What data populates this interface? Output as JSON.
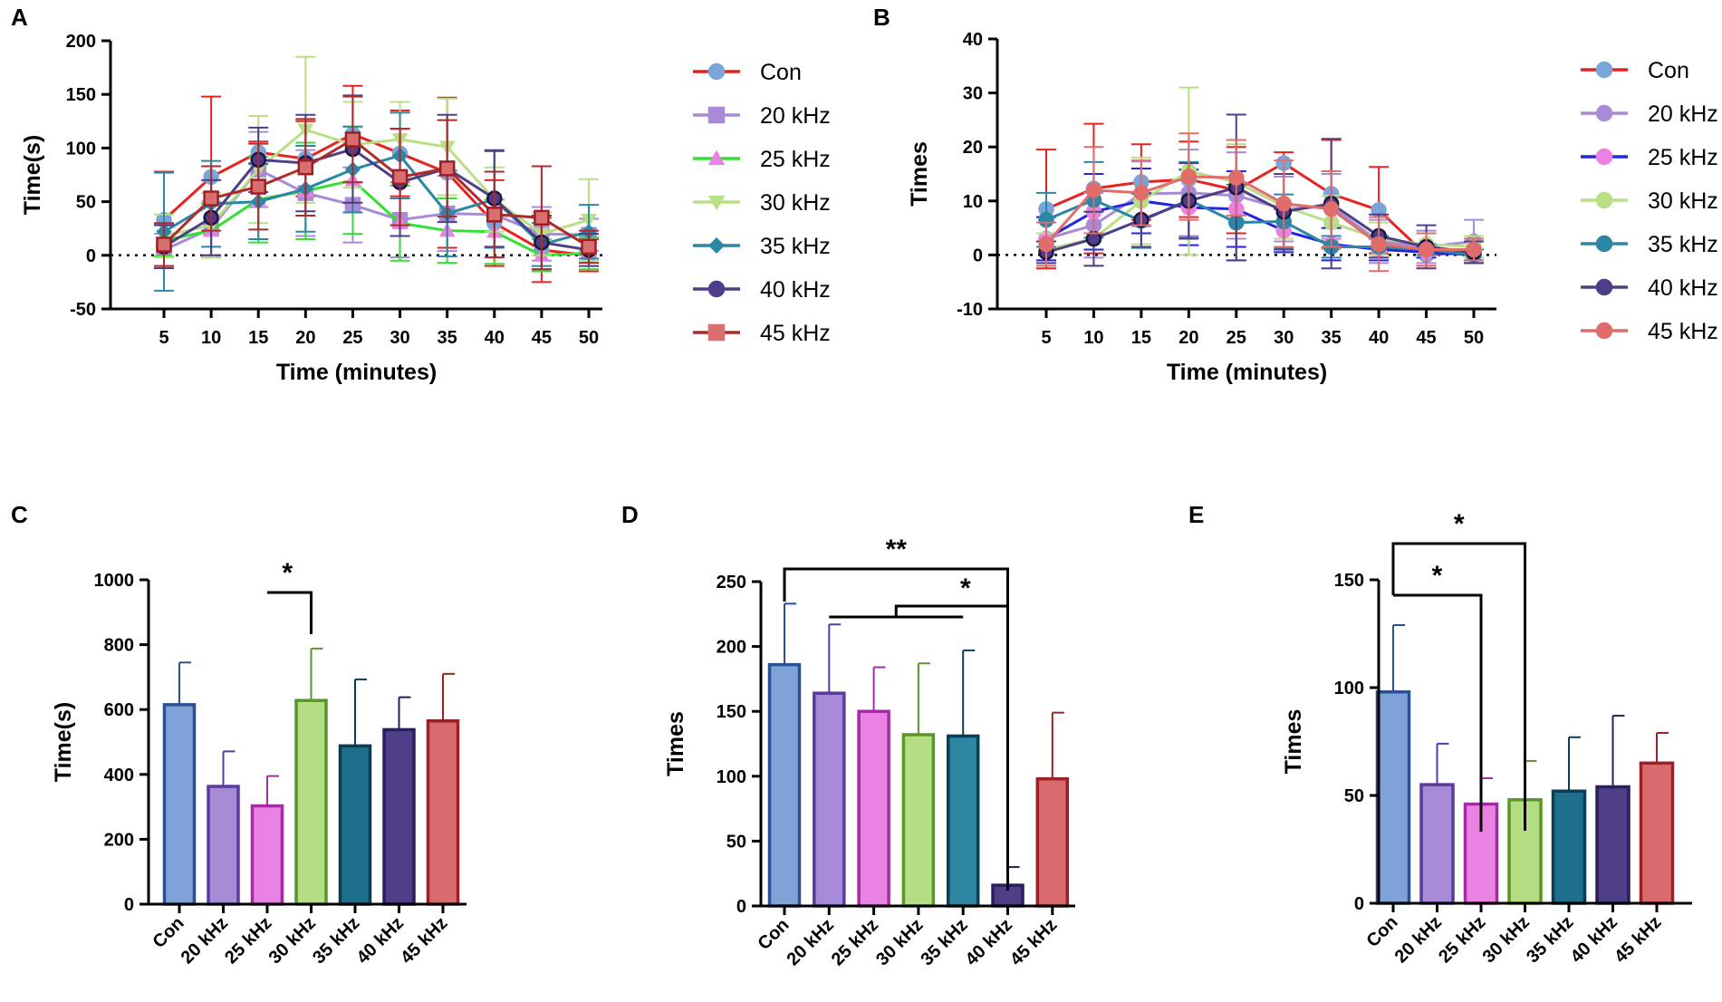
{
  "chart_data": [
    {
      "panel": "A",
      "type": "line",
      "xlabel": "Time (minutes)",
      "ylabel": "Time(s)",
      "x": [
        5,
        10,
        15,
        20,
        25,
        30,
        35,
        40,
        45,
        50
      ],
      "ylim": [
        -50,
        200
      ],
      "yticks": [
        -50,
        0,
        50,
        100,
        150,
        200
      ],
      "zero_line": true,
      "legend_position": "right",
      "series": [
        {
          "name": "Con",
          "color": "#e8231f",
          "marker": "circle",
          "marker_color": "#7aa5d8",
          "values": [
            33,
            73,
            96,
            90,
            113,
            95,
            77,
            30,
            5,
            0
          ],
          "errors": [
            45,
            75,
            10,
            35,
            45,
            40,
            70,
            40,
            30,
            15
          ]
        },
        {
          "name": "20 kHz",
          "color": "#a98ad6",
          "marker": "square",
          "marker_color": "#a98ad6",
          "values": [
            5,
            25,
            80,
            58,
            47,
            33,
            39,
            38,
            20,
            19
          ],
          "errors": [
            15,
            25,
            35,
            40,
            35,
            35,
            35,
            40,
            25,
            15
          ]
        },
        {
          "name": "25 kHz",
          "color": "#33e033",
          "marker": "triangle-up",
          "marker_color": "#ea82e4",
          "values": [
            14,
            23,
            52,
            60,
            70,
            30,
            23,
            22,
            0,
            2
          ],
          "errors": [
            15,
            25,
            40,
            45,
            50,
            35,
            30,
            30,
            15,
            15
          ]
        },
        {
          "name": "30 kHz",
          "color": "#b8de86",
          "marker": "triangle-down",
          "marker_color": "#b8de86",
          "values": [
            18,
            28,
            80,
            117,
            103,
            108,
            101,
            52,
            20,
            33
          ],
          "errors": [
            20,
            30,
            50,
            68,
            40,
            35,
            45,
            30,
            20,
            38
          ]
        },
        {
          "name": "35 kHz",
          "color": "#2c86a4",
          "marker": "diamond",
          "marker_color": "#2c86a4",
          "values": [
            22,
            48,
            50,
            62,
            80,
            93,
            39,
            52,
            10,
            22
          ],
          "errors": [
            55,
            40,
            35,
            40,
            40,
            40,
            40,
            45,
            20,
            25
          ]
        },
        {
          "name": "40 kHz",
          "color": "#4e3d87",
          "marker": "circle",
          "marker_color": "#4e3d87",
          "values": [
            8,
            35,
            89,
            86,
            99,
            68,
            81,
            53,
            12,
            5
          ],
          "errors": [
            20,
            35,
            30,
            45,
            50,
            50,
            50,
            45,
            25,
            15
          ]
        },
        {
          "name": "45 kHz",
          "color": "#b02a2a",
          "marker": "square",
          "marker_color": "#d96e6e",
          "values": [
            10,
            53,
            64,
            82,
            108,
            73,
            81,
            38,
            35,
            8
          ],
          "errors": [
            20,
            30,
            40,
            45,
            40,
            45,
            45,
            40,
            48,
            15
          ]
        }
      ]
    },
    {
      "panel": "B",
      "type": "line",
      "xlabel": "Time (minutes)",
      "ylabel": "Times",
      "x": [
        5,
        10,
        15,
        20,
        25,
        30,
        35,
        40,
        45,
        50
      ],
      "ylim": [
        -10,
        40
      ],
      "yticks": [
        -10,
        0,
        10,
        20,
        30,
        40
      ],
      "zero_line": true,
      "legend_position": "right",
      "series": [
        {
          "name": "Con",
          "color": "#e8231f",
          "marker": "circle",
          "marker_color": "#7aa5d8",
          "values": [
            8.5,
            12.3,
            13.5,
            14,
            12,
            17,
            11.3,
            8.3,
            0,
            0.5
          ],
          "errors": [
            11,
            12,
            7,
            7,
            8,
            2,
            10,
            8,
            2,
            2
          ]
        },
        {
          "name": "20 kHz",
          "color": "#a98ad6",
          "marker": "circle",
          "marker_color": "#a98ad6",
          "values": [
            3,
            5.5,
            11.3,
            11.5,
            11,
            8.5,
            9,
            2.5,
            1.5,
            2.5
          ],
          "errors": [
            4,
            6,
            6,
            8,
            8,
            6,
            6,
            4,
            3,
            4
          ]
        },
        {
          "name": "25 kHz",
          "color": "#2525e0",
          "marker": "circle",
          "marker_color": "#ea82e4",
          "values": [
            3,
            8,
            10,
            8.8,
            8.5,
            4.5,
            2,
            1,
            0.5,
            0
          ],
          "errors": [
            4,
            7,
            6,
            7,
            7,
            4,
            3,
            2,
            1,
            1
          ]
        },
        {
          "name": "30 kHz",
          "color": "#b8de86",
          "marker": "circle",
          "marker_color": "#b8de86",
          "values": [
            1,
            3,
            10,
            15.5,
            13.5,
            9,
            6,
            3,
            2,
            1.5
          ],
          "errors": [
            3,
            5,
            8,
            15.5,
            7,
            6,
            5,
            3,
            2,
            2
          ]
        },
        {
          "name": "35 kHz",
          "color": "#2c86a4",
          "marker": "circle",
          "marker_color": "#2c86a4",
          "values": [
            6.5,
            10.2,
            6.3,
            10.2,
            6,
            6.2,
            1.5,
            1.5,
            1,
            0
          ],
          "errors": [
            5,
            7,
            5,
            7,
            7,
            5,
            2,
            2,
            1,
            1
          ]
        },
        {
          "name": "40 kHz",
          "color": "#4e3d87",
          "marker": "circle",
          "marker_color": "#4e3d87",
          "values": [
            0.5,
            3,
            6.5,
            10,
            12.5,
            8,
            9.5,
            3.5,
            1.5,
            0.5
          ],
          "errors": [
            2,
            5,
            5,
            7,
            13.5,
            7,
            12,
            4,
            4,
            2
          ]
        },
        {
          "name": "45 kHz",
          "color": "#e06c6c",
          "marker": "circle",
          "marker_color": "#e06c6c",
          "values": [
            2,
            12,
            11.5,
            14.5,
            14.3,
            9.5,
            8.5,
            2,
            1,
            1
          ],
          "errors": [
            4,
            8,
            6,
            8,
            7,
            8,
            7,
            5,
            3,
            2
          ]
        }
      ]
    },
    {
      "panel": "C",
      "type": "bar",
      "xlabel": "",
      "ylabel": "Time(s)",
      "categories": [
        "Con",
        "20 kHz",
        "25 kHz",
        "30 kHz",
        "35 kHz",
        "40 kHz",
        "45 kHz"
      ],
      "values": [
        615,
        363,
        303,
        628,
        488,
        538,
        565
      ],
      "errors": [
        130,
        108,
        92,
        160,
        205,
        100,
        145
      ],
      "fills": [
        "#7fa3d6",
        "#a58bd6",
        "#ea82e4",
        "#b5dd83",
        "#1e6e8c",
        "#4e3d87",
        "#d96b6e"
      ],
      "strokes": [
        "#2a4f94",
        "#5a3a9f",
        "#a52ba2",
        "#5a962a",
        "#0b3d57",
        "#2a1e5c",
        "#9b2025"
      ],
      "ylim": [
        0,
        1000
      ],
      "yticks": [
        0,
        200,
        400,
        600,
        800,
        1000
      ],
      "significance": [
        {
          "from": 2,
          "to": 3,
          "label": "*"
        }
      ]
    },
    {
      "panel": "D",
      "type": "bar",
      "xlabel": "",
      "ylabel": "Times",
      "categories": [
        "Con",
        "20 kHz",
        "25 kHz",
        "30 kHz",
        "35 kHz",
        "40 kHz",
        "45 kHz"
      ],
      "values": [
        186,
        164,
        150,
        132,
        131,
        16,
        98
      ],
      "errors": [
        47,
        53,
        34,
        55,
        66,
        14,
        51
      ],
      "fills": [
        "#7fa3d6",
        "#a58bd6",
        "#ea82e4",
        "#b5dd83",
        "#2c86a4",
        "#4e3d87",
        "#d96b6e"
      ],
      "strokes": [
        "#2a4f94",
        "#5a3a9f",
        "#a52ba2",
        "#5a962a",
        "#0b3d57",
        "#2a1e5c",
        "#9b2025"
      ],
      "ylim": [
        0,
        250
      ],
      "yticks": [
        0,
        50,
        100,
        150,
        200,
        250
      ],
      "significance": [
        {
          "from": 0,
          "to": 5,
          "label": "**"
        },
        {
          "from_group": [
            1,
            4
          ],
          "to": 5,
          "label": "*"
        }
      ]
    },
    {
      "panel": "E",
      "type": "bar",
      "xlabel": "",
      "ylabel": "Times",
      "categories": [
        "Con",
        "20 kHz",
        "25 kHz",
        "30 kHz",
        "35 kHz",
        "40 kHz",
        "45 kHz"
      ],
      "values": [
        98,
        55,
        46,
        48,
        52,
        54,
        65
      ],
      "errors": [
        31,
        19,
        12,
        18,
        25,
        33,
        14
      ],
      "fills": [
        "#7fa3d6",
        "#a58bd6",
        "#ea82e4",
        "#b5dd83",
        "#1e6e8c",
        "#4e3d87",
        "#d96b6e"
      ],
      "strokes": [
        "#2a4f94",
        "#5a3a9f",
        "#a52ba2",
        "#5a962a",
        "#0b3d57",
        "#2a1e5c",
        "#9b2025"
      ],
      "ylim": [
        0,
        150
      ],
      "yticks": [
        0,
        50,
        100,
        150
      ],
      "significance": [
        {
          "from": 0,
          "to": 2,
          "label": "*"
        },
        {
          "from": 0,
          "to": 3,
          "label": "*"
        }
      ]
    }
  ]
}
